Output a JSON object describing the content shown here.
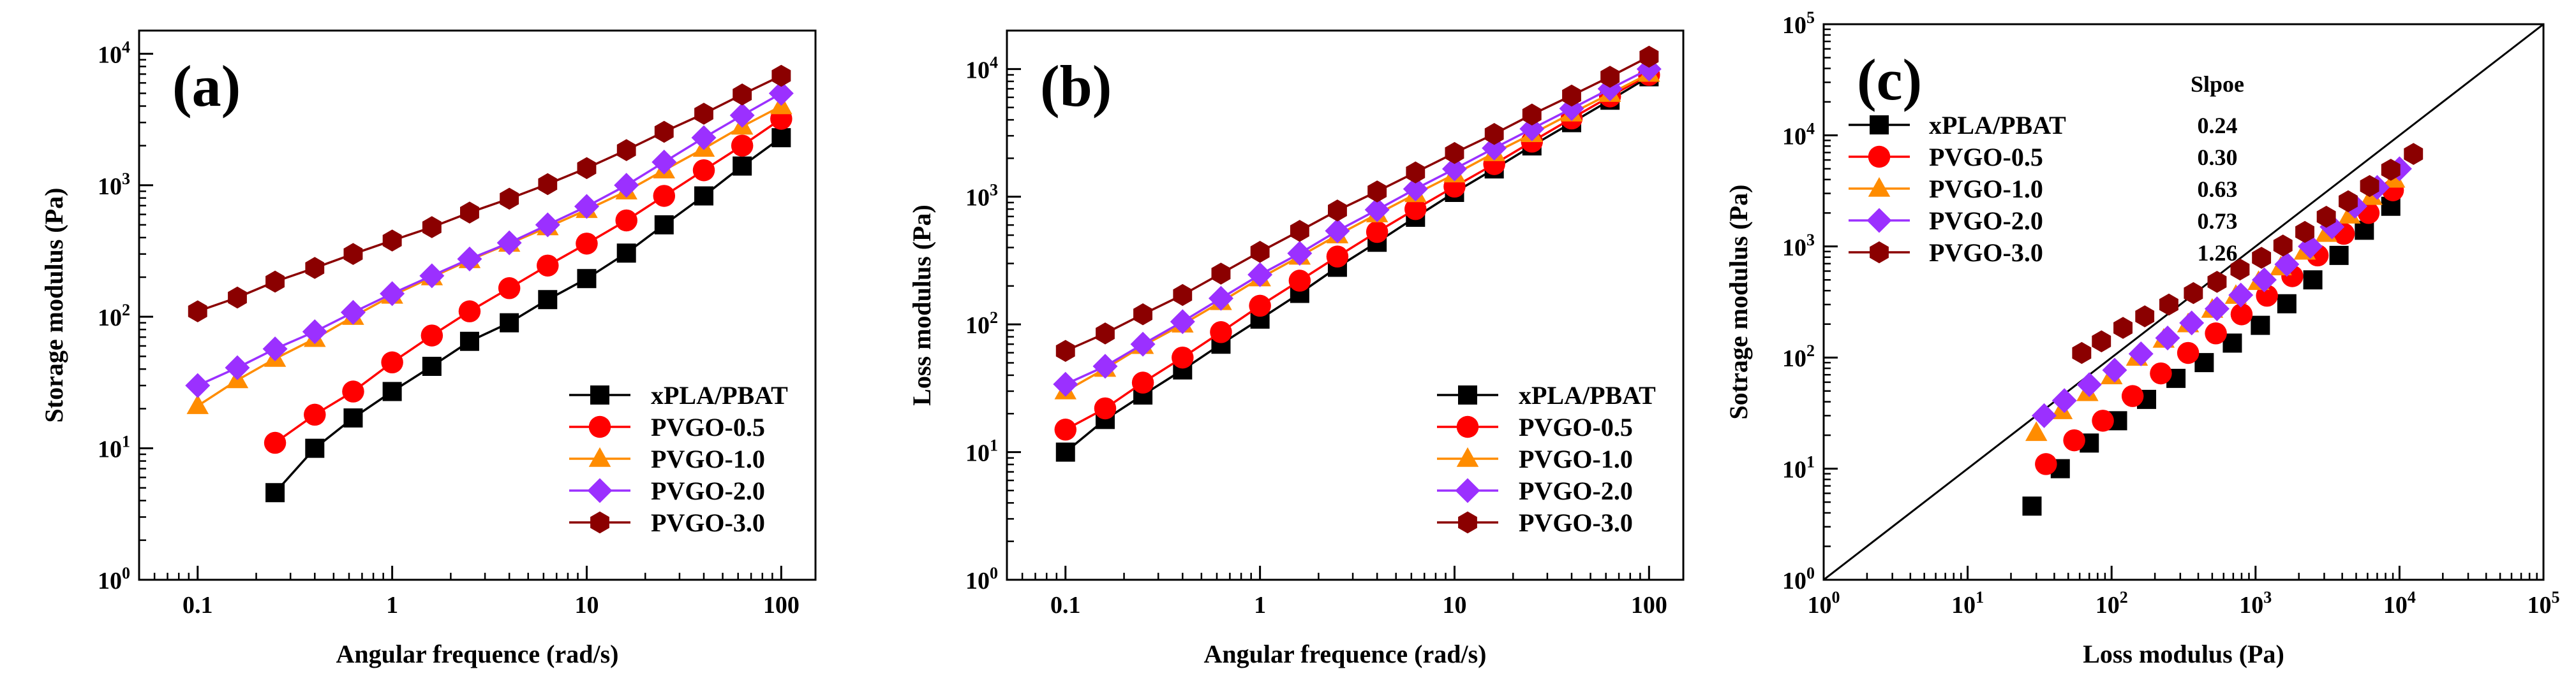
{
  "series_meta": [
    {
      "name": "xPLA/PBAT",
      "color": "#000000",
      "marker": "square"
    },
    {
      "name": "PVGO-0.5",
      "color": "#ff0000",
      "marker": "circle"
    },
    {
      "name": "PVGO-1.0",
      "color": "#ff8c00",
      "marker": "triangle"
    },
    {
      "name": "PVGO-2.0",
      "color": "#9b30ff",
      "marker": "diamond"
    },
    {
      "name": "PVGO-3.0",
      "color": "#8b0000",
      "marker": "hexagon"
    }
  ],
  "chart_data": [
    {
      "panel": "(a)",
      "type": "line",
      "xscale": "log",
      "yscale": "log",
      "xlabel": "Angular frequence (rad/s)",
      "ylabel": "Storage modulus (Pa)",
      "xlim": [
        0.05,
        150
      ],
      "ylim": [
        1,
        15000
      ],
      "xticks": [
        {
          "v": 0.1,
          "label": "0.1"
        },
        {
          "v": 1,
          "label": "1"
        },
        {
          "v": 10,
          "label": "10"
        },
        {
          "v": 100,
          "label": "100"
        }
      ],
      "yticks": [
        {
          "v": 1,
          "base": "10",
          "exp": "0"
        },
        {
          "v": 10,
          "base": "10",
          "exp": "1"
        },
        {
          "v": 100,
          "base": "10",
          "exp": "2"
        },
        {
          "v": 1000,
          "base": "10",
          "exp": "3"
        },
        {
          "v": 10000,
          "base": "10",
          "exp": "4"
        }
      ],
      "legend": "bottom-right",
      "series": [
        {
          "name": "xPLA/PBAT",
          "x": [
            0.25,
            0.4,
            0.63,
            1,
            1.6,
            2.5,
            4,
            6.3,
            10,
            16,
            25,
            40,
            63,
            100
          ],
          "y": [
            4.6,
            10,
            17,
            27,
            42,
            65,
            90,
            135,
            195,
            305,
            500,
            830,
            1400,
            2300
          ]
        },
        {
          "name": "PVGO-0.5",
          "x": [
            0.25,
            0.4,
            0.63,
            1,
            1.6,
            2.5,
            4,
            6.3,
            10,
            16,
            25,
            40,
            63,
            100
          ],
          "y": [
            11,
            18,
            27,
            45,
            72,
            110,
            165,
            245,
            360,
            540,
            830,
            1300,
            2000,
            3200
          ]
        },
        {
          "name": "PVGO-1.0",
          "x": [
            0.1,
            0.16,
            0.25,
            0.4,
            0.63,
            1,
            1.6,
            2.5,
            4,
            6.3,
            10,
            16,
            25,
            40,
            63,
            100
          ],
          "y": [
            21,
            33,
            48,
            68,
            100,
            145,
            200,
            270,
            360,
            480,
            650,
            900,
            1300,
            1900,
            2800,
            4000
          ]
        },
        {
          "name": "PVGO-2.0",
          "x": [
            0.1,
            0.16,
            0.25,
            0.4,
            0.63,
            1,
            1.6,
            2.5,
            4,
            6.3,
            10,
            16,
            25,
            40,
            63,
            100
          ],
          "y": [
            30,
            41,
            57,
            77,
            108,
            150,
            205,
            275,
            365,
            500,
            690,
            1000,
            1500,
            2300,
            3400,
            5000
          ]
        },
        {
          "name": "PVGO-3.0",
          "x": [
            0.1,
            0.16,
            0.25,
            0.4,
            0.63,
            1,
            1.6,
            2.5,
            4,
            6.3,
            10,
            16,
            25,
            40,
            63,
            100
          ],
          "y": [
            110,
            140,
            185,
            235,
            300,
            380,
            480,
            620,
            790,
            1020,
            1350,
            1850,
            2550,
            3500,
            4900,
            6800
          ]
        }
      ]
    },
    {
      "panel": "(b)",
      "type": "line",
      "xscale": "log",
      "yscale": "log",
      "xlabel": "Angular frequence (rad/s)",
      "ylabel": "Loss modulus (Pa)",
      "xlim": [
        0.05,
        150
      ],
      "ylim": [
        1,
        20000
      ],
      "xticks": [
        {
          "v": 0.1,
          "label": "0.1"
        },
        {
          "v": 1,
          "label": "1"
        },
        {
          "v": 10,
          "label": "10"
        },
        {
          "v": 100,
          "label": "100"
        }
      ],
      "yticks": [
        {
          "v": 1,
          "base": "10",
          "exp": "0"
        },
        {
          "v": 10,
          "base": "10",
          "exp": "1"
        },
        {
          "v": 100,
          "base": "10",
          "exp": "2"
        },
        {
          "v": 1000,
          "base": "10",
          "exp": "3"
        },
        {
          "v": 10000,
          "base": "10",
          "exp": "4"
        }
      ],
      "legend": "bottom-right",
      "series": [
        {
          "name": "xPLA/PBAT",
          "x": [
            0.1,
            0.16,
            0.25,
            0.4,
            0.63,
            1,
            1.6,
            2.5,
            4,
            6.3,
            10,
            16,
            25,
            40,
            63,
            100
          ],
          "y": [
            10,
            18,
            28,
            44,
            70,
            110,
            175,
            280,
            440,
            690,
            1080,
            1650,
            2500,
            3800,
            5700,
            8700
          ]
        },
        {
          "name": "PVGO-0.5",
          "x": [
            0.1,
            0.16,
            0.25,
            0.4,
            0.63,
            1,
            1.6,
            2.5,
            4,
            6.3,
            10,
            16,
            25,
            40,
            63,
            100
          ],
          "y": [
            15,
            22,
            35,
            55,
            87,
            140,
            220,
            340,
            530,
            800,
            1200,
            1800,
            2700,
            4100,
            6100,
            9000
          ]
        },
        {
          "name": "PVGO-1.0",
          "x": [
            0.1,
            0.16,
            0.25,
            0.4,
            0.63,
            1,
            1.6,
            2.5,
            4,
            6.3,
            10,
            16,
            25,
            40,
            63,
            100
          ],
          "y": [
            30,
            45,
            68,
            100,
            150,
            230,
            340,
            500,
            730,
            1050,
            1500,
            2200,
            3100,
            4500,
            6400,
            9200
          ]
        },
        {
          "name": "PVGO-2.0",
          "x": [
            0.1,
            0.16,
            0.25,
            0.4,
            0.63,
            1,
            1.6,
            2.5,
            4,
            6.3,
            10,
            16,
            25,
            40,
            63,
            100
          ],
          "y": [
            34,
            47,
            70,
            105,
            160,
            245,
            360,
            540,
            790,
            1150,
            1650,
            2400,
            3400,
            4900,
            7000,
            10000
          ]
        },
        {
          "name": "PVGO-3.0",
          "x": [
            0.1,
            0.16,
            0.25,
            0.4,
            0.63,
            1,
            1.6,
            2.5,
            4,
            6.3,
            10,
            16,
            25,
            40,
            63,
            100
          ],
          "y": [
            62,
            85,
            120,
            170,
            250,
            370,
            540,
            780,
            1100,
            1550,
            2200,
            3100,
            4400,
            6200,
            8700,
            12500
          ]
        }
      ]
    },
    {
      "panel": "(c)",
      "type": "scatter",
      "xscale": "log",
      "yscale": "log",
      "xlabel": "Loss modulus (Pa)",
      "ylabel": "Sotrage modulus (Pa)",
      "xlim": [
        1,
        100000
      ],
      "ylim": [
        1,
        100000
      ],
      "xticks": [
        {
          "v": 1,
          "base": "10",
          "exp": "0"
        },
        {
          "v": 10,
          "base": "10",
          "exp": "1"
        },
        {
          "v": 100,
          "base": "10",
          "exp": "2"
        },
        {
          "v": 1000,
          "base": "10",
          "exp": "3"
        },
        {
          "v": 10000,
          "base": "10",
          "exp": "4"
        },
        {
          "v": 100000,
          "base": "10",
          "exp": "5"
        }
      ],
      "yticks": [
        {
          "v": 1,
          "base": "10",
          "exp": "0"
        },
        {
          "v": 10,
          "base": "10",
          "exp": "1"
        },
        {
          "v": 100,
          "base": "10",
          "exp": "2"
        },
        {
          "v": 1000,
          "base": "10",
          "exp": "3"
        },
        {
          "v": 10000,
          "base": "10",
          "exp": "4"
        },
        {
          "v": 100000,
          "base": "10",
          "exp": "5"
        }
      ],
      "reference_line": {
        "x": [
          1,
          100000
        ],
        "y": [
          1,
          100000
        ]
      },
      "legend": "top-left",
      "slope_header": "Slpoe",
      "slopes": [
        "0.24",
        "0.30",
        "0.63",
        "0.73",
        "1.26"
      ],
      "series": [
        {
          "name": "xPLA/PBAT",
          "x": [
            28,
            44,
            70,
            110,
            175,
            280,
            440,
            690,
            1080,
            1650,
            2500,
            3800,
            5700,
            8700
          ],
          "y": [
            4.6,
            10,
            17,
            27,
            42,
            65,
            90,
            135,
            195,
            305,
            500,
            830,
            1400,
            2300
          ]
        },
        {
          "name": "PVGO-0.5",
          "x": [
            35,
            55,
            87,
            140,
            220,
            340,
            530,
            800,
            1200,
            1800,
            2700,
            4100,
            6100,
            9000
          ],
          "y": [
            11,
            18,
            27,
            45,
            72,
            110,
            165,
            245,
            360,
            540,
            830,
            1300,
            2000,
            3200
          ]
        },
        {
          "name": "PVGO-1.0",
          "x": [
            30,
            45,
            68,
            100,
            150,
            230,
            340,
            500,
            730,
            1050,
            1500,
            2200,
            3100,
            4500,
            6400,
            9200
          ],
          "y": [
            21,
            33,
            48,
            68,
            100,
            145,
            200,
            270,
            360,
            480,
            650,
            900,
            1300,
            1900,
            2800,
            4000
          ]
        },
        {
          "name": "PVGO-2.0",
          "x": [
            34,
            47,
            70,
            105,
            160,
            245,
            360,
            540,
            790,
            1150,
            1650,
            2400,
            3400,
            4900,
            7000,
            10000
          ],
          "y": [
            30,
            41,
            57,
            77,
            108,
            150,
            205,
            275,
            365,
            500,
            690,
            1000,
            1500,
            2300,
            3400,
            5000
          ]
        },
        {
          "name": "PVGO-3.0",
          "x": [
            62,
            85,
            120,
            170,
            250,
            370,
            540,
            780,
            1100,
            1550,
            2200,
            3100,
            4400,
            6200,
            8700,
            12500
          ],
          "y": [
            110,
            140,
            185,
            235,
            300,
            380,
            480,
            620,
            790,
            1020,
            1350,
            1850,
            2550,
            3500,
            4900,
            6800
          ]
        }
      ]
    }
  ]
}
